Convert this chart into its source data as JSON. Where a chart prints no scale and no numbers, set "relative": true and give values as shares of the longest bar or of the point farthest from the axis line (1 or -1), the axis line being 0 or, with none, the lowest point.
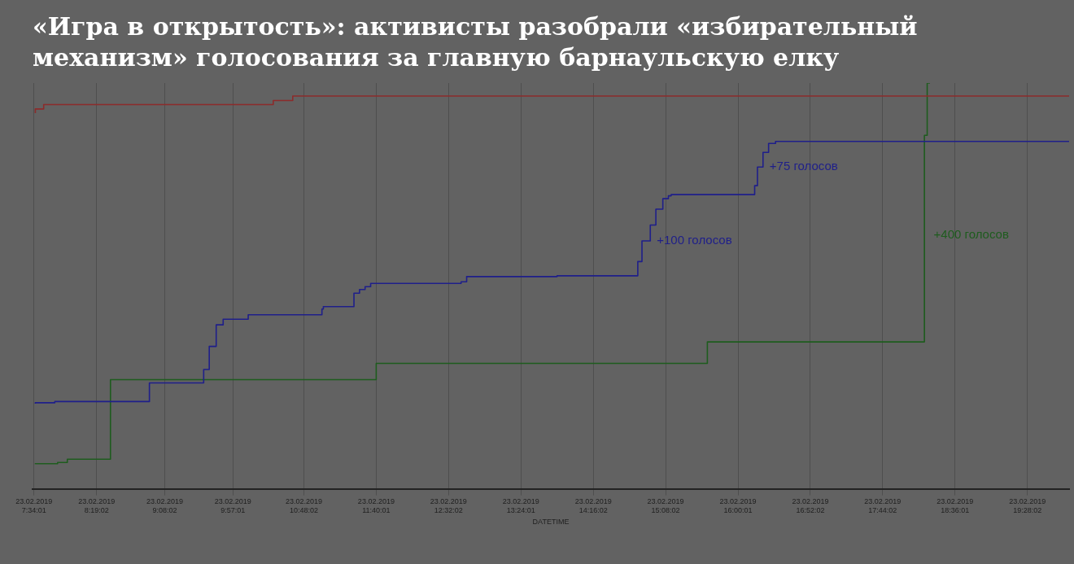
{
  "chart_data": {
    "type": "step",
    "relative": true,
    "title": "«Игра в открытость»: активисты разобрали «избирательный механизм» голосования за главную барнаульскую елку",
    "xlabel": "DATETIME",
    "xlim": [
      "2019-02-23T07:33",
      "2019-02-23T19:58"
    ],
    "xticks": [
      {
        "value": "2019-02-23T07:34",
        "label": "23.02.2019 7:34:01"
      },
      {
        "value": "2019-02-23T08:19",
        "label": "23.02.2019 8:19:02"
      },
      {
        "value": "2019-02-23T09:08",
        "label": "23.02.2019 9:08:02"
      },
      {
        "value": "2019-02-23T09:57",
        "label": "23.02.2019 9:57:01"
      },
      {
        "value": "2019-02-23T10:48",
        "label": "23.02.2019 10:48:02"
      },
      {
        "value": "2019-02-23T11:40",
        "label": "23.02.2019 11:40:01"
      },
      {
        "value": "2019-02-23T12:32",
        "label": "23.02.2019 12:32:02"
      },
      {
        "value": "2019-02-23T13:24",
        "label": "23.02.2019 13:24:01"
      },
      {
        "value": "2019-02-23T14:16",
        "label": "23.02.2019 14:16:02"
      },
      {
        "value": "2019-02-23T15:08",
        "label": "23.02.2019 15:08:02"
      },
      {
        "value": "2019-02-23T16:00",
        "label": "23.02.2019 16:00:01"
      },
      {
        "value": "2019-02-23T16:52",
        "label": "23.02.2019 16:52:02"
      },
      {
        "value": "2019-02-23T17:44",
        "label": "23.02.2019 17:44:02"
      },
      {
        "value": "2019-02-23T18:36",
        "label": "23.02.2019 18:36:01"
      },
      {
        "value": "2019-02-23T19:28",
        "label": "23.02.2019 19:28:02"
      }
    ],
    "grid": "x",
    "marker": "none",
    "line_style": "solid",
    "series": [
      {
        "color": "#8c2b2b",
        "x": [
          "2019-02-23T07:35",
          "2019-02-23T07:41",
          "2019-02-23T10:26",
          "2019-02-23T10:40",
          "2019-02-23T10:47",
          "2019-02-23T19:58"
        ],
        "values": [
          0.926,
          0.936,
          0.947,
          0.957,
          0.968,
          0.968
        ]
      },
      {
        "color": "#1f1f8a",
        "x": [
          "2019-02-23T07:35",
          "2019-02-23T07:49",
          "2019-02-23T08:57",
          "2019-02-23T09:36",
          "2019-02-23T09:40",
          "2019-02-23T09:45",
          "2019-02-23T09:50",
          "2019-02-23T10:08",
          "2019-02-23T11:01",
          "2019-02-23T11:02",
          "2019-02-23T11:24",
          "2019-02-23T11:28",
          "2019-02-23T11:32",
          "2019-02-23T11:36",
          "2019-02-23T12:41",
          "2019-02-23T12:45",
          "2019-02-23T13:50",
          "2019-02-23T14:48",
          "2019-02-23T14:51",
          "2019-02-23T14:57",
          "2019-02-23T15:01",
          "2019-02-23T15:06",
          "2019-02-23T15:10",
          "2019-02-23T15:12",
          "2019-02-23T16:12",
          "2019-02-23T16:14",
          "2019-02-23T16:18",
          "2019-02-23T16:22",
          "2019-02-23T16:27",
          "2019-02-23T18:44",
          "2019-02-23T19:58"
        ],
        "values": [
          0.21,
          0.212,
          0.215,
          0.261,
          0.294,
          0.351,
          0.404,
          0.418,
          0.429,
          0.443,
          0.449,
          0.482,
          0.491,
          0.498,
          0.506,
          0.51,
          0.523,
          0.525,
          0.56,
          0.611,
          0.65,
          0.689,
          0.715,
          0.722,
          0.725,
          0.747,
          0.793,
          0.829,
          0.851,
          0.856,
          0.856
        ]
      },
      {
        "color": "#1e5c1e",
        "x": [
          "2019-02-23T07:35",
          "2019-02-23T07:51",
          "2019-02-23T07:58",
          "2019-02-23T08:29",
          "2019-02-23T11:40",
          "2019-02-23T15:38",
          "2019-02-23T18:14",
          "2019-02-23T18:16",
          "2019-02-23T18:18"
        ],
        "values": [
          0.061,
          0.062,
          0.065,
          0.073,
          0.269,
          0.309,
          0.362,
          0.871,
          1.0
        ]
      }
    ],
    "annotations": [
      {
        "text": "+100 голосов",
        "x": "2019-02-23T14:57",
        "y": 0.611
      },
      {
        "text": "+75 голосов",
        "x": "2019-02-23T16:18",
        "y": 0.793
      },
      {
        "text": "+400 голосов",
        "x": "2019-02-23T18:16",
        "y": 0.625
      }
    ]
  }
}
